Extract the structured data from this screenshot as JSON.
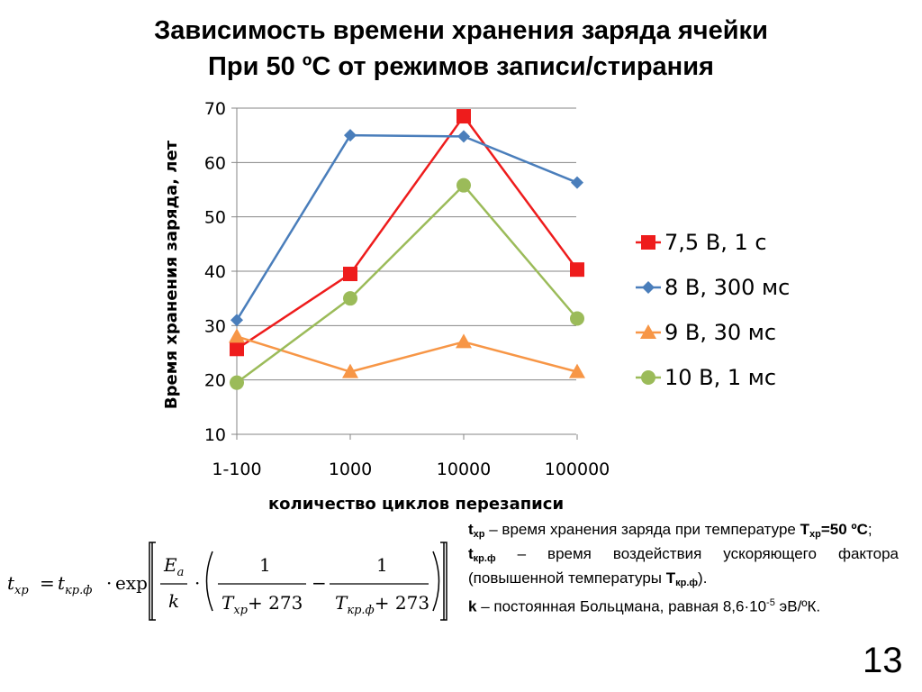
{
  "slide": {
    "title_line1": "Зависимость времени хранения заряда ячейки",
    "title_line2": "При 50 ºС от режимов записи/стирания",
    "page_number": "13"
  },
  "chart_data": {
    "type": "line",
    "categories": [
      "1-100",
      "1000",
      "10000",
      "100000"
    ],
    "xlabel": "количество циклов перезаписи",
    "ylabel": "Время хранения заряда, лет",
    "ylim": [
      10,
      70
    ],
    "yticks": [
      10,
      20,
      30,
      40,
      50,
      60,
      70
    ],
    "grid": true,
    "legend_position": "right",
    "series": [
      {
        "name": "7,5 В, 1 с",
        "color": "#ee1c1c",
        "marker": "square",
        "values": [
          25.7,
          39.5,
          68.5,
          40.3
        ]
      },
      {
        "name": "8 В, 300 мс",
        "color": "#4a7ebb",
        "marker": "diamond",
        "values": [
          31,
          65,
          64.8,
          56.3
        ]
      },
      {
        "name": "9 В, 30 мс",
        "color": "#f79646",
        "marker": "triangle",
        "values": [
          28,
          21.5,
          27,
          21.5
        ]
      },
      {
        "name": "10 В, 1 мс",
        "color": "#9bbb59",
        "marker": "circle",
        "values": [
          19.5,
          35,
          55.8,
          31.3
        ]
      }
    ]
  },
  "formula": {
    "lhs": "t",
    "lhs_sub": "хр",
    "t2": "t",
    "t2_sub": "кр.ф",
    "func": "exp",
    "ea": "E",
    "ea_sub": "a",
    "k": "k",
    "one": "1",
    "T": "T",
    "T1_sub": "хр",
    "T2_sub": "кр.ф",
    "plus273": "+ 273"
  },
  "notes": {
    "line1_sym": "t",
    "line1_sub": "хр",
    "line1_text": " – время хранения заряда при температуре ",
    "line1_bold_sym": "T",
    "line1_bold_sub": "хр",
    "line1_bold_val": "=50 ºС",
    "line1_end": ";",
    "line2_sym": "t",
    "line2_sub": "кр.ф",
    "line2_text": " – время воздействия ускоряющего фактора (повышенной температуры ",
    "line2_bold_sym": "T",
    "line2_bold_sub": "кр.ф",
    "line2_end": ").",
    "line3_sym": "k",
    "line3_text": " – постоянная Больцмана, равная 8,6·10",
    "line3_sup": "-5",
    "line3_end": " эВ/ºК."
  }
}
